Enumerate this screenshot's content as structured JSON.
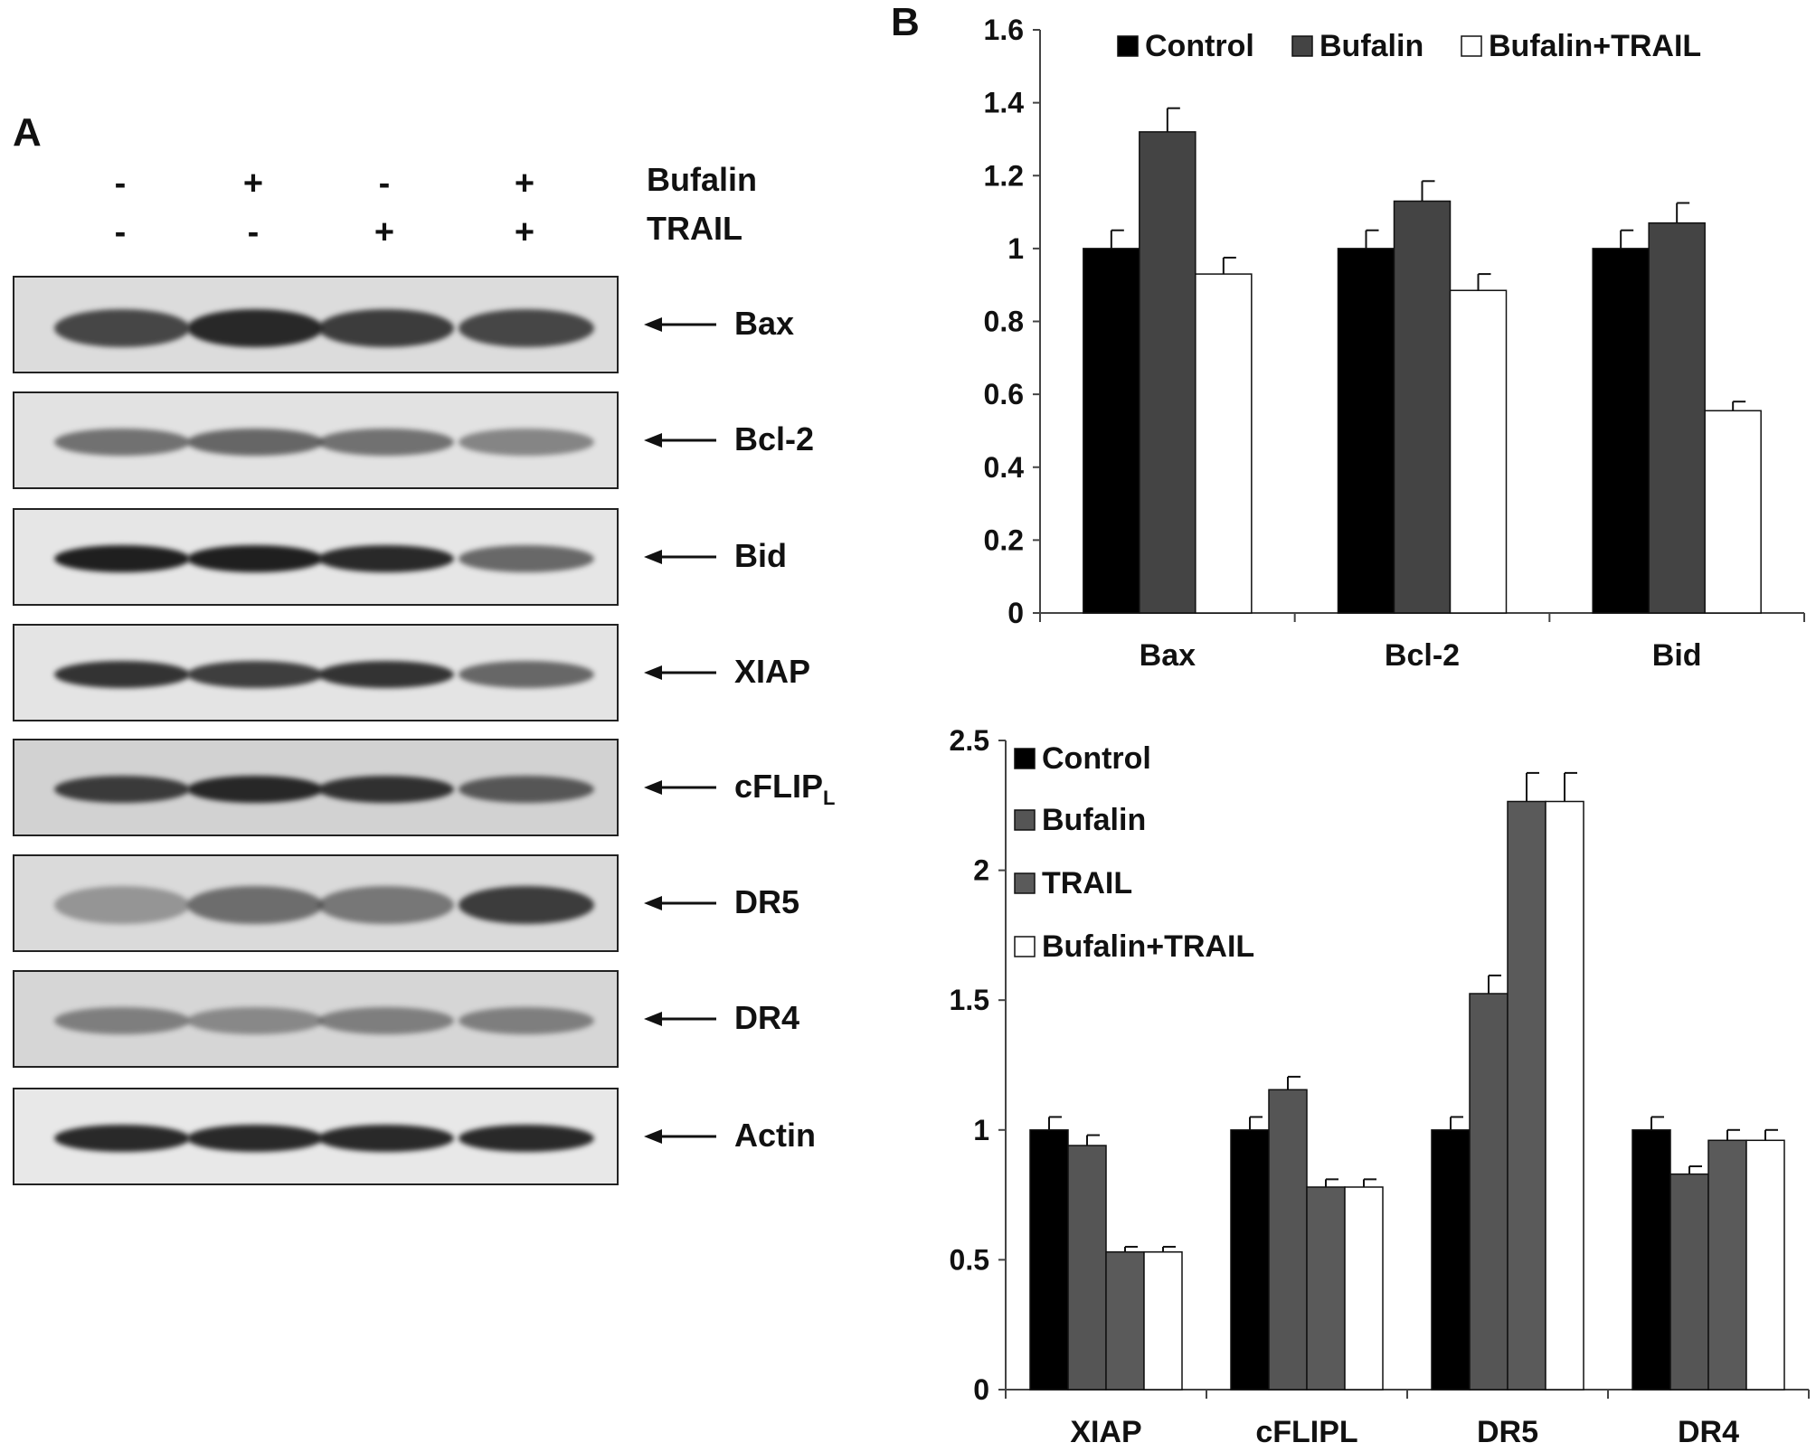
{
  "panel_a": {
    "letter": "A",
    "conditions": [
      {
        "name": "Bufalin",
        "signs": [
          "-",
          "+",
          "-",
          "+"
        ]
      },
      {
        "name": "TRAIL",
        "signs": [
          "-",
          "-",
          "+",
          "+"
        ]
      }
    ],
    "blots": [
      {
        "label": "Bax",
        "sub": ""
      },
      {
        "label": "Bcl-2",
        "sub": ""
      },
      {
        "label": "Bid",
        "sub": ""
      },
      {
        "label": "XIAP",
        "sub": ""
      },
      {
        "label": "cFLIP",
        "sub": "L"
      },
      {
        "label": "DR5",
        "sub": ""
      },
      {
        "label": "DR4",
        "sub": ""
      },
      {
        "label": "Actin",
        "sub": ""
      }
    ]
  },
  "panel_b": {
    "letter": "B"
  },
  "colors": {
    "control": "#000000",
    "bufalin": "#555555",
    "bufalin_top": "#444444",
    "trail": "#5a5a5a",
    "combo": "#ffffff"
  },
  "chart_data": [
    {
      "type": "bar",
      "categories": [
        "Bax",
        "Bcl-2",
        "Bid"
      ],
      "ylim": [
        0,
        1.6
      ],
      "yticks": [
        "0",
        "0.2",
        "0.4",
        "0.6",
        "0.8",
        "1",
        "1.2",
        "1.4",
        "1.6"
      ],
      "legend_position": "top",
      "series": [
        {
          "name": "Control",
          "values": [
            1.0,
            1.0,
            1.0
          ],
          "errors": [
            0.05,
            0.05,
            0.05
          ]
        },
        {
          "name": "Bufalin",
          "values": [
            1.32,
            1.13,
            1.07
          ],
          "errors": [
            0.065,
            0.055,
            0.055
          ]
        },
        {
          "name": "Bufalin+TRAIL",
          "values": [
            0.93,
            0.885,
            0.555
          ],
          "errors": [
            0.045,
            0.045,
            0.025
          ]
        }
      ]
    },
    {
      "type": "bar",
      "categories": [
        "XIAP",
        "cFLIPL",
        "DR5",
        "DR4"
      ],
      "ylim": [
        0,
        2.5
      ],
      "yticks": [
        "0",
        "0.5",
        "1",
        "1.5",
        "2",
        "2.5"
      ],
      "legend_position": "top-left",
      "series": [
        {
          "name": "Control",
          "values": [
            1.0,
            1.0,
            1.0,
            1.0
          ],
          "errors": [
            0.05,
            0.05,
            0.05,
            0.05
          ]
        },
        {
          "name": "Bufalin",
          "values": [
            0.94,
            1.155,
            1.525,
            0.83
          ],
          "errors": [
            0.04,
            0.05,
            0.07,
            0.03
          ]
        },
        {
          "name": "TRAIL",
          "values": [
            0.53,
            0.78,
            2.265,
            0.96
          ],
          "errors": [
            0.02,
            0.03,
            0.11,
            0.04
          ]
        },
        {
          "name": "Bufalin+TRAIL",
          "values": [
            0.53,
            0.78,
            2.265,
            0.96
          ],
          "errors": [
            0.02,
            0.03,
            0.11,
            0.04
          ]
        }
      ]
    }
  ]
}
